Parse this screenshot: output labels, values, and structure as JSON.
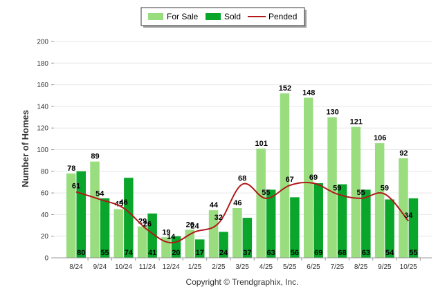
{
  "chart_data": {
    "type": "bar",
    "title": "",
    "xlabel": "",
    "ylabel": "Number of Homes",
    "ylim": [
      0,
      200
    ],
    "yticks": [
      0,
      20,
      40,
      60,
      80,
      100,
      120,
      140,
      160,
      180,
      200
    ],
    "categories": [
      "8/24",
      "9/24",
      "10/24",
      "11/24",
      "12/24",
      "1/25",
      "2/25",
      "3/25",
      "4/25",
      "5/25",
      "6/25",
      "7/25",
      "8/25",
      "9/25",
      "10/25"
    ],
    "series": [
      {
        "name": "For Sale",
        "kind": "bar",
        "color": "#99dd7f",
        "values": [
          78,
          89,
          45,
          29,
          19,
          26,
          44,
          46,
          101,
          152,
          148,
          130,
          121,
          106,
          92
        ]
      },
      {
        "name": "Sold",
        "kind": "bar",
        "color": "#0aa52b",
        "values": [
          80,
          55,
          74,
          41,
          20,
          17,
          24,
          37,
          63,
          56,
          69,
          68,
          63,
          54,
          55
        ]
      },
      {
        "name": "Pended",
        "kind": "line",
        "color": "#b01a1a",
        "values": [
          61,
          54,
          46,
          26,
          14,
          24,
          32,
          68,
          55,
          67,
          69,
          59,
          55,
          59,
          34
        ]
      }
    ],
    "legend": "top-center",
    "grid": true,
    "footer": "Copyright © Trendgraphix, Inc."
  }
}
